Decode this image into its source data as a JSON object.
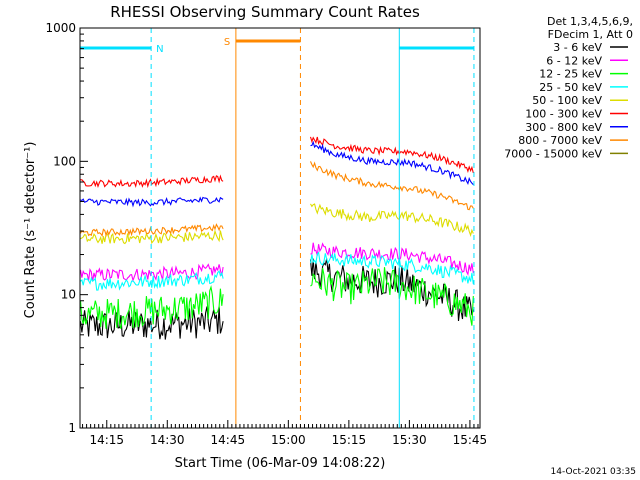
{
  "chart_data": {
    "type": "line",
    "title": "RHESSI Observing Summary Count Rates",
    "xlabel": "Start Time (06-Mar-09 14:08:22)",
    "ylabel": "Count Rate (s⁻¹ detector⁻¹)",
    "ylog": true,
    "ylim": [
      1,
      1000
    ],
    "xlim": [
      "14:08:22",
      "15:47:30"
    ],
    "x_ticks": [
      "14:15",
      "14:30",
      "14:45",
      "15:00",
      "15:15",
      "15:30",
      "15:45"
    ],
    "y_ticks": [
      "1",
      "10",
      "100",
      "1000"
    ],
    "legend_header": [
      "Det 1,3,4,5,6,9,",
      "FDecim 1, Att 0"
    ],
    "legend_position": "right",
    "footer_date": "14-Oct-2021 03:35",
    "markers": {
      "N": {
        "label": "N",
        "color": "#00e0ff",
        "intervals": [
          [
            "14:08:22",
            "14:26:00"
          ],
          [
            "15:27:30",
            "15:46:00"
          ]
        ]
      },
      "S": {
        "label": "S",
        "color": "#ff8800",
        "intervals": [
          [
            "14:47:00",
            "15:03:00"
          ]
        ]
      }
    },
    "data_gap": [
      "14:44:30",
      "15:05:30"
    ],
    "series": [
      {
        "name": "3 - 6 keV",
        "color": "#000000",
        "noise": 0.12,
        "points": [
          [
            "14:08:30",
            5.8
          ],
          [
            "14:20:00",
            5.9
          ],
          [
            "14:26:00",
            6.0
          ],
          [
            "14:40:00",
            6.2
          ],
          [
            "14:44:00",
            6.5
          ],
          [
            "15:05:30",
            15.5
          ],
          [
            "15:10:00",
            14.0
          ],
          [
            "15:15:00",
            12.8
          ],
          [
            "15:22:00",
            12.5
          ],
          [
            "15:27:00",
            13.0
          ],
          [
            "15:32:00",
            11.5
          ],
          [
            "15:40:00",
            9.0
          ],
          [
            "15:46:00",
            7.0
          ]
        ]
      },
      {
        "name": "6 - 12 keV",
        "color": "#ff00ff",
        "noise": 0.05,
        "points": [
          [
            "14:08:30",
            14.0
          ],
          [
            "14:25:00",
            14.2
          ],
          [
            "14:35:00",
            14.5
          ],
          [
            "14:44:00",
            15.5
          ],
          [
            "15:05:30",
            22.0
          ],
          [
            "15:12:00",
            21.0
          ],
          [
            "15:20:00",
            20.5
          ],
          [
            "15:30:00",
            20.0
          ],
          [
            "15:38:00",
            18.0
          ],
          [
            "15:46:00",
            15.5
          ]
        ]
      },
      {
        "name": "12 - 25 keV",
        "color": "#00ff00",
        "noise": 0.12,
        "points": [
          [
            "14:08:30",
            7.0
          ],
          [
            "14:25:00",
            7.5
          ],
          [
            "14:35:00",
            8.0
          ],
          [
            "14:44:00",
            9.0
          ],
          [
            "15:05:30",
            13.5
          ],
          [
            "15:10:00",
            12.0
          ],
          [
            "15:15:00",
            11.0
          ],
          [
            "15:22:00",
            12.5
          ],
          [
            "15:27:00",
            12.0
          ],
          [
            "15:33:00",
            10.5
          ],
          [
            "15:40:00",
            9.0
          ],
          [
            "15:46:00",
            7.5
          ]
        ]
      },
      {
        "name": "25 - 50 keV",
        "color": "#00ffff",
        "noise": 0.05,
        "points": [
          [
            "14:08:30",
            12.0
          ],
          [
            "14:25:00",
            12.5
          ],
          [
            "14:35:00",
            13.0
          ],
          [
            "14:44:00",
            14.0
          ],
          [
            "15:05:30",
            19.0
          ],
          [
            "15:15:00",
            18.0
          ],
          [
            "15:25:00",
            17.5
          ],
          [
            "15:35:00",
            16.0
          ],
          [
            "15:46:00",
            13.0
          ]
        ]
      },
      {
        "name": "50 - 100 keV",
        "color": "#dddd00",
        "noise": 0.04,
        "points": [
          [
            "14:08:30",
            26.0
          ],
          [
            "14:25:00",
            26.5
          ],
          [
            "14:35:00",
            27.0
          ],
          [
            "14:44:00",
            28.0
          ],
          [
            "15:05:30",
            45.0
          ],
          [
            "15:12:00",
            41.0
          ],
          [
            "15:20:00",
            38.0
          ],
          [
            "15:28:00",
            39.5
          ],
          [
            "15:36:00",
            36.0
          ],
          [
            "15:46:00",
            30.0
          ]
        ]
      },
      {
        "name": "100 - 300 keV",
        "color": "#ff0000",
        "noise": 0.025,
        "points": [
          [
            "14:08:30",
            69.0
          ],
          [
            "14:20:00",
            68.0
          ],
          [
            "14:30:00",
            70.0
          ],
          [
            "14:44:00",
            75.0
          ],
          [
            "15:05:30",
            150.0
          ],
          [
            "15:12:00",
            130.0
          ],
          [
            "15:20:00",
            120.0
          ],
          [
            "15:30:00",
            118.0
          ],
          [
            "15:38:00",
            105.0
          ],
          [
            "15:46:00",
            86.0
          ]
        ]
      },
      {
        "name": "300 - 800 keV",
        "color": "#0000ff",
        "noise": 0.025,
        "points": [
          [
            "14:08:30",
            50.0
          ],
          [
            "14:25:00",
            49.0
          ],
          [
            "14:35:00",
            50.5
          ],
          [
            "14:44:00",
            52.0
          ],
          [
            "15:05:30",
            135.0
          ],
          [
            "15:12:00",
            112.0
          ],
          [
            "15:20:00",
            100.0
          ],
          [
            "15:30:00",
            98.0
          ],
          [
            "15:38:00",
            85.0
          ],
          [
            "15:46:00",
            68.0
          ]
        ]
      },
      {
        "name": "800 - 7000 keV",
        "color": "#ff8800",
        "noise": 0.025,
        "points": [
          [
            "14:08:30",
            29.0
          ],
          [
            "14:25:00",
            30.0
          ],
          [
            "14:35:00",
            31.0
          ],
          [
            "14:44:00",
            32.0
          ],
          [
            "15:05:30",
            95.0
          ],
          [
            "15:12:00",
            78.0
          ],
          [
            "15:20:00",
            68.0
          ],
          [
            "15:30:00",
            63.0
          ],
          [
            "15:38:00",
            55.0
          ],
          [
            "15:46:00",
            44.0
          ]
        ]
      },
      {
        "name": "7000 - 15000 keV",
        "color": "#808000",
        "noise": 0.02,
        "points": []
      }
    ]
  }
}
